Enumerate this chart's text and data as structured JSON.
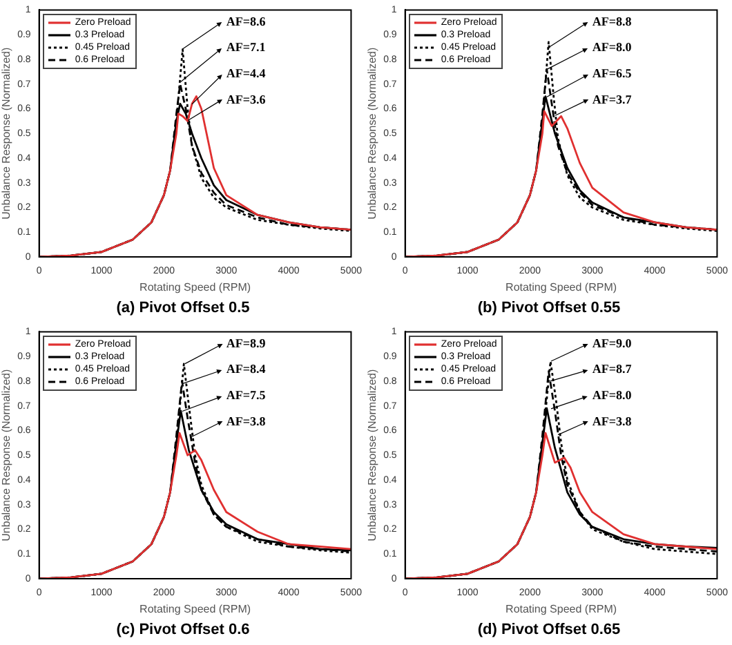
{
  "chart_data": [
    {
      "type": "line",
      "title": "(a) Pivot Offset 0.5",
      "xlabel": "Rotating Speed (RPM)",
      "ylabel": "Unbalance Response (Normalized)",
      "xlim": [
        0,
        5000
      ],
      "xticks": [
        0,
        1000,
        2000,
        3000,
        4000,
        5000
      ],
      "ylim": [
        0,
        1
      ],
      "yticks": [
        0,
        0.1,
        0.2,
        0.3,
        0.4,
        0.5,
        0.6,
        0.7,
        0.8,
        0.9,
        1
      ],
      "legend": "top left",
      "marker": "none",
      "series": [
        {
          "name": "Zero Preload",
          "color": "#e03030",
          "line_style": "solid",
          "x": [
            0,
            500,
            1000,
            1500,
            1800,
            2000,
            2100,
            2200,
            2230,
            2300,
            2380,
            2450,
            2520,
            2600,
            2700,
            2800,
            3000,
            3500,
            4000,
            4500,
            5000
          ],
          "values": [
            0,
            0.005,
            0.02,
            0.07,
            0.14,
            0.25,
            0.35,
            0.5,
            0.58,
            0.57,
            0.55,
            0.62,
            0.65,
            0.6,
            0.48,
            0.36,
            0.25,
            0.17,
            0.14,
            0.12,
            0.11
          ]
        },
        {
          "name": "0.3 Preload",
          "color": "#000000",
          "line_style": "solid",
          "x": [
            0,
            500,
            1000,
            1500,
            1800,
            2000,
            2100,
            2200,
            2260,
            2350,
            2450,
            2600,
            2800,
            3000,
            3500,
            4000,
            4500,
            5000
          ],
          "values": [
            0,
            0.005,
            0.02,
            0.07,
            0.14,
            0.25,
            0.35,
            0.55,
            0.62,
            0.58,
            0.5,
            0.4,
            0.29,
            0.23,
            0.17,
            0.14,
            0.12,
            0.11
          ]
        },
        {
          "name": "0.45 Preload",
          "color": "#000000",
          "line_style": "dotted",
          "x": [
            0,
            500,
            1000,
            1500,
            1800,
            2000,
            2100,
            2200,
            2300,
            2380,
            2450,
            2600,
            2800,
            3000,
            3500,
            4000,
            4500,
            5000
          ],
          "values": [
            0,
            0.005,
            0.02,
            0.07,
            0.14,
            0.25,
            0.35,
            0.55,
            0.84,
            0.6,
            0.45,
            0.32,
            0.24,
            0.2,
            0.15,
            0.13,
            0.115,
            0.105
          ]
        },
        {
          "name": "0.6 Preload",
          "color": "#000000",
          "line_style": "dashed",
          "x": [
            0,
            500,
            1000,
            1500,
            1800,
            2000,
            2100,
            2200,
            2260,
            2350,
            2450,
            2600,
            2800,
            3000,
            3500,
            4000,
            4500,
            5000
          ],
          "values": [
            0,
            0.005,
            0.02,
            0.07,
            0.14,
            0.25,
            0.35,
            0.58,
            0.7,
            0.6,
            0.45,
            0.34,
            0.26,
            0.21,
            0.16,
            0.13,
            0.12,
            0.11
          ]
        }
      ],
      "annotations": [
        {
          "text": "AF=8.6",
          "x": 2300,
          "y": 0.84
        },
        {
          "text": "AF=7.1",
          "x": 2280,
          "y": 0.71
        },
        {
          "text": "AF=4.4",
          "x": 2450,
          "y": 0.62
        },
        {
          "text": "AF=3.6",
          "x": 2380,
          "y": 0.55
        }
      ]
    },
    {
      "type": "line",
      "title": "(b) Pivot Offset 0.55",
      "xlabel": "Rotating Speed (RPM)",
      "ylabel": "Unbalance Response (Normalized)",
      "xlim": [
        0,
        5000
      ],
      "xticks": [
        0,
        1000,
        2000,
        3000,
        4000,
        5000
      ],
      "ylim": [
        0,
        1
      ],
      "yticks": [
        0,
        0.1,
        0.2,
        0.3,
        0.4,
        0.5,
        0.6,
        0.7,
        0.8,
        0.9,
        1
      ],
      "legend": "top left",
      "marker": "none",
      "series": [
        {
          "name": "Zero Preload",
          "color": "#e03030",
          "line_style": "solid",
          "x": [
            0,
            500,
            1000,
            1500,
            1800,
            2000,
            2100,
            2200,
            2230,
            2350,
            2500,
            2600,
            2800,
            3000,
            3500,
            4000,
            4500,
            5000
          ],
          "values": [
            0,
            0.005,
            0.02,
            0.07,
            0.14,
            0.25,
            0.35,
            0.5,
            0.59,
            0.53,
            0.57,
            0.52,
            0.38,
            0.28,
            0.18,
            0.14,
            0.12,
            0.11
          ]
        },
        {
          "name": "0.3 Preload",
          "color": "#000000",
          "line_style": "solid",
          "x": [
            0,
            500,
            1000,
            1500,
            1800,
            2000,
            2100,
            2200,
            2250,
            2400,
            2600,
            2800,
            3000,
            3500,
            4000,
            4500,
            5000
          ],
          "values": [
            0,
            0.005,
            0.02,
            0.07,
            0.14,
            0.25,
            0.35,
            0.55,
            0.65,
            0.5,
            0.36,
            0.27,
            0.22,
            0.16,
            0.14,
            0.12,
            0.11
          ]
        },
        {
          "name": "0.45 Preload",
          "color": "#000000",
          "line_style": "dotted",
          "x": [
            0,
            500,
            1000,
            1500,
            1800,
            2000,
            2100,
            2200,
            2300,
            2380,
            2450,
            2600,
            2800,
            3000,
            3500,
            4000,
            4500,
            5000
          ],
          "values": [
            0,
            0.005,
            0.02,
            0.07,
            0.14,
            0.25,
            0.35,
            0.55,
            0.87,
            0.65,
            0.48,
            0.33,
            0.24,
            0.2,
            0.15,
            0.13,
            0.115,
            0.105
          ]
        },
        {
          "name": "0.6 Preload",
          "color": "#000000",
          "line_style": "dashed",
          "x": [
            0,
            500,
            1000,
            1500,
            1800,
            2000,
            2100,
            2200,
            2270,
            2350,
            2450,
            2600,
            2800,
            3000,
            3500,
            4000,
            4500,
            5000
          ],
          "values": [
            0,
            0.005,
            0.02,
            0.07,
            0.14,
            0.25,
            0.35,
            0.58,
            0.76,
            0.62,
            0.45,
            0.34,
            0.26,
            0.21,
            0.16,
            0.13,
            0.12,
            0.11
          ]
        }
      ],
      "annotations": [
        {
          "text": "AF=8.8",
          "x": 2320,
          "y": 0.85
        },
        {
          "text": "AF=8.0",
          "x": 2280,
          "y": 0.76
        },
        {
          "text": "AF=6.5",
          "x": 2270,
          "y": 0.65
        },
        {
          "text": "AF=3.7",
          "x": 2400,
          "y": 0.57
        }
      ]
    },
    {
      "type": "line",
      "title": "(c) Pivot Offset 0.6",
      "xlabel": "Rotating Speed (RPM)",
      "ylabel": "Unbalance Response (Normalized)",
      "xlim": [
        0,
        5000
      ],
      "xticks": [
        0,
        1000,
        2000,
        3000,
        4000,
        5000
      ],
      "ylim": [
        0,
        1
      ],
      "yticks": [
        0,
        0.1,
        0.2,
        0.3,
        0.4,
        0.5,
        0.6,
        0.7,
        0.8,
        0.9,
        1
      ],
      "legend": "top left",
      "marker": "none",
      "series": [
        {
          "name": "Zero Preload",
          "color": "#e03030",
          "line_style": "solid",
          "x": [
            0,
            500,
            1000,
            1500,
            1800,
            2000,
            2100,
            2200,
            2250,
            2380,
            2500,
            2600,
            2800,
            3000,
            3500,
            4000,
            4500,
            5000
          ],
          "values": [
            0,
            0.005,
            0.02,
            0.07,
            0.14,
            0.25,
            0.35,
            0.5,
            0.59,
            0.5,
            0.52,
            0.48,
            0.36,
            0.27,
            0.19,
            0.14,
            0.13,
            0.12
          ]
        },
        {
          "name": "0.3 Preload",
          "color": "#000000",
          "line_style": "solid",
          "x": [
            0,
            500,
            1000,
            1500,
            1800,
            2000,
            2100,
            2200,
            2270,
            2400,
            2600,
            2800,
            3000,
            3500,
            4000,
            4500,
            5000
          ],
          "values": [
            0,
            0.005,
            0.02,
            0.07,
            0.14,
            0.25,
            0.35,
            0.55,
            0.68,
            0.52,
            0.36,
            0.27,
            0.22,
            0.16,
            0.14,
            0.12,
            0.115
          ]
        },
        {
          "name": "0.45 Preload",
          "color": "#000000",
          "line_style": "dotted",
          "x": [
            0,
            500,
            1000,
            1500,
            1800,
            2000,
            2100,
            2200,
            2320,
            2400,
            2500,
            2600,
            2800,
            3000,
            3500,
            4000,
            4500,
            5000
          ],
          "values": [
            0,
            0.005,
            0.02,
            0.07,
            0.14,
            0.25,
            0.35,
            0.55,
            0.87,
            0.7,
            0.5,
            0.38,
            0.26,
            0.21,
            0.15,
            0.13,
            0.115,
            0.105
          ]
        },
        {
          "name": "0.6 Preload",
          "color": "#000000",
          "line_style": "dashed",
          "x": [
            0,
            500,
            1000,
            1500,
            1800,
            2000,
            2100,
            2200,
            2290,
            2380,
            2500,
            2600,
            2800,
            3000,
            3500,
            4000,
            4500,
            5000
          ],
          "values": [
            0,
            0.005,
            0.02,
            0.07,
            0.14,
            0.25,
            0.35,
            0.58,
            0.8,
            0.65,
            0.47,
            0.36,
            0.26,
            0.21,
            0.16,
            0.13,
            0.12,
            0.11
          ]
        }
      ],
      "annotations": [
        {
          "text": "AF=8.9",
          "x": 2330,
          "y": 0.87
        },
        {
          "text": "AF=8.4",
          "x": 2300,
          "y": 0.79
        },
        {
          "text": "AF=7.5",
          "x": 2300,
          "y": 0.68
        },
        {
          "text": "AF=3.8",
          "x": 2420,
          "y": 0.57
        }
      ]
    },
    {
      "type": "line",
      "title": "(d) Pivot Offset 0.65",
      "xlabel": "Rotating Speed (RPM)",
      "ylabel": "Unbalance Response (Normalized)",
      "xlim": [
        0,
        5000
      ],
      "xticks": [
        0,
        1000,
        2000,
        3000,
        4000,
        5000
      ],
      "ylim": [
        0,
        1
      ],
      "yticks": [
        0,
        0.1,
        0.2,
        0.3,
        0.4,
        0.5,
        0.6,
        0.7,
        0.8,
        0.9,
        1
      ],
      "legend": "top left",
      "marker": "none",
      "series": [
        {
          "name": "Zero Preload",
          "color": "#e03030",
          "line_style": "solid",
          "x": [
            0,
            500,
            1000,
            1500,
            1800,
            2000,
            2100,
            2200,
            2250,
            2400,
            2550,
            2650,
            2800,
            3000,
            3500,
            4000,
            4500,
            5000
          ],
          "values": [
            0,
            0.005,
            0.02,
            0.07,
            0.14,
            0.25,
            0.35,
            0.5,
            0.59,
            0.47,
            0.49,
            0.45,
            0.35,
            0.27,
            0.18,
            0.14,
            0.13,
            0.12
          ]
        },
        {
          "name": "0.3 Preload",
          "color": "#000000",
          "line_style": "solid",
          "x": [
            0,
            500,
            1000,
            1500,
            1800,
            2000,
            2100,
            2200,
            2270,
            2400,
            2600,
            2800,
            3000,
            3500,
            4000,
            4500,
            5000
          ],
          "values": [
            0,
            0.005,
            0.02,
            0.07,
            0.14,
            0.25,
            0.35,
            0.55,
            0.69,
            0.53,
            0.35,
            0.26,
            0.21,
            0.16,
            0.14,
            0.13,
            0.125
          ]
        },
        {
          "name": "0.45 Preload",
          "color": "#000000",
          "line_style": "dotted",
          "x": [
            0,
            500,
            1000,
            1500,
            1800,
            2000,
            2100,
            2200,
            2330,
            2420,
            2500,
            2600,
            2800,
            3000,
            3500,
            4000,
            4500,
            5000
          ],
          "values": [
            0,
            0.005,
            0.02,
            0.07,
            0.14,
            0.25,
            0.35,
            0.55,
            0.88,
            0.72,
            0.55,
            0.4,
            0.27,
            0.2,
            0.15,
            0.12,
            0.11,
            0.1
          ]
        },
        {
          "name": "0.6 Preload",
          "color": "#000000",
          "line_style": "dashed",
          "x": [
            0,
            500,
            1000,
            1500,
            1800,
            2000,
            2100,
            2200,
            2300,
            2400,
            2500,
            2600,
            2800,
            3000,
            3500,
            4000,
            4500,
            5000
          ],
          "values": [
            0,
            0.005,
            0.02,
            0.07,
            0.14,
            0.25,
            0.35,
            0.58,
            0.84,
            0.68,
            0.5,
            0.38,
            0.27,
            0.21,
            0.15,
            0.13,
            0.12,
            0.11
          ]
        }
      ],
      "annotations": [
        {
          "text": "AF=9.0",
          "x": 2340,
          "y": 0.88
        },
        {
          "text": "AF=8.7",
          "x": 2320,
          "y": 0.8
        },
        {
          "text": "AF=8.0",
          "x": 2350,
          "y": 0.69
        },
        {
          "text": "AF=3.8",
          "x": 2450,
          "y": 0.58
        }
      ]
    }
  ]
}
